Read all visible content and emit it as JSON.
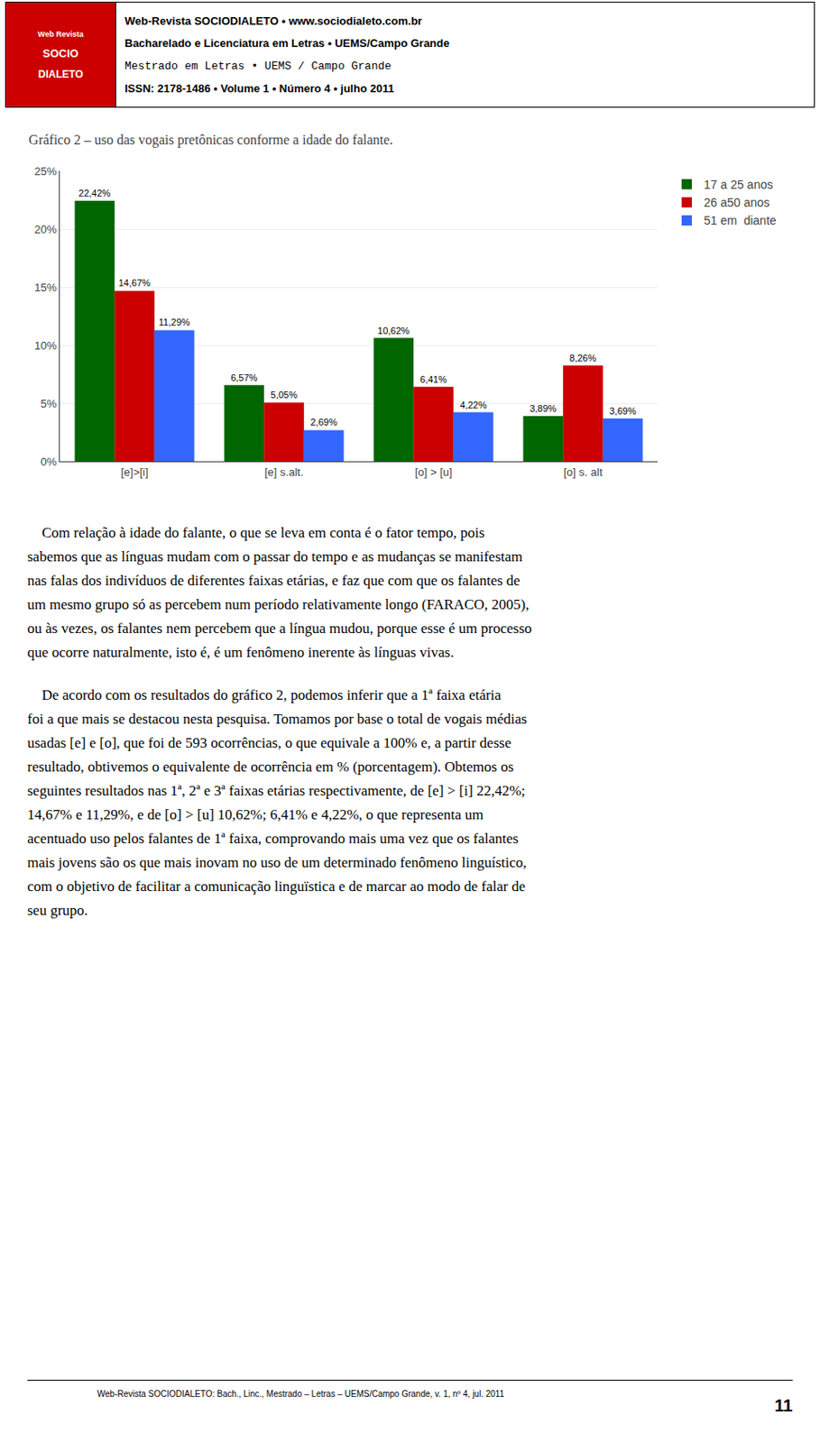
{
  "chart_data": {
    "type": "bar",
    "title": "Gráfico 2 – uso das vogais pretônicas conforme a idade do falante.",
    "categories": [
      "[e]>[i]",
      "[e] s.alt.",
      "[o] > [u]",
      "[o] s. alt"
    ],
    "series": [
      {
        "name": "17 a 25 anos",
        "color": "#006600",
        "values": [
          22.42,
          6.57,
          10.62,
          3.89
        ],
        "value_labels": [
          "22,42%",
          "6,57%",
          "10,62%",
          "3,89%"
        ]
      },
      {
        "name": "26 a50 anos",
        "color": "#cc0000",
        "values": [
          14.67,
          5.05,
          6.41,
          8.26
        ],
        "value_labels": [
          "14,67%",
          "5,05%",
          "6,41%",
          "8,26%"
        ]
      },
      {
        "name": "51 em  diante",
        "color": "#3366ff",
        "values": [
          11.29,
          2.69,
          4.22,
          3.69
        ],
        "value_labels": [
          "11,29%",
          "2,69%",
          "4,22%",
          "3,69%"
        ]
      }
    ],
    "ylim": [
      0,
      25
    ],
    "yticks": [
      {
        "value": 0,
        "label": "0%"
      },
      {
        "value": 5,
        "label": "5%"
      },
      {
        "value": 10,
        "label": "10%"
      },
      {
        "value": 15,
        "label": "15%"
      },
      {
        "value": 20,
        "label": "20%"
      },
      {
        "value": 25,
        "label": "25%"
      }
    ],
    "grid": true,
    "legend": "right",
    "data_labels": true,
    "annotations": [
      [
        "Web Revista",
        "SOCIO",
        "DIALETO"
      ],
      [
        "Web-Revista SOCIODIALETO  •  www.sociodialeto.com.br",
        "Bacharelado e Licenciatura em Letras • UEMS/Campo Grande",
        "Mestrado em Letras  •  UEMS / Campo Grande",
        "ISSN: 2178-1486 • Volume 1 • Número 4 • julho 2011"
      ],
      [
        "    Com relação à idade do falante, o que se leva em conta é o fator tempo, pois",
        "sabemos que as línguas mudam com o passar do tempo e as mudanças se manifestam",
        "nas falas dos indivíduos de diferentes faixas etárias, e faz que com que os falantes de",
        "um mesmo grupo só as percebem num período relativamente longo (FARACO, 2005),",
        "ou às vezes, os falantes nem percebem que a língua mudou, porque esse é um processo",
        "que ocorre naturalmente, isto é, é um fenômeno inerente às línguas vivas."
      ],
      [
        "    De acordo com os resultados do gráfico 2, podemos inferir que a 1ª faixa etária",
        "foi a que mais se destacou nesta pesquisa. Tomamos por base o total de vogais médias",
        "usadas [e] e [o], que foi de 593 ocorrências, o que equivale a 100% e, a partir desse",
        "resultado, obtivemos o equivalente de ocorrência em % (porcentagem). Obtemos os",
        "seguintes resultados nas 1ª, 2ª e 3ª faixas etárias respectivamente, de [e] > [i] 22,42%;",
        "14,67% e 11,29%, e de [o] > [u] 10,62%; 6,41% e 4,22%, o que representa um",
        "acentuado uso pelos falantes de 1ª faixa, comprovando mais uma vez que os falantes",
        "mais jovens são os que mais inovam no uso de um determinado fenômeno linguístico,",
        "com o objetivo de facilitar a comunicação linguïstica e de marcar ao modo de falar de",
        "seu grupo."
      ],
      [
        "Web-Revista SOCIODIALETO: Bach., Linc., Mestrado – Letras – UEMS/Campo Grande, v. 1, nº 4, jul. 2011",
        "11"
      ]
    ]
  }
}
